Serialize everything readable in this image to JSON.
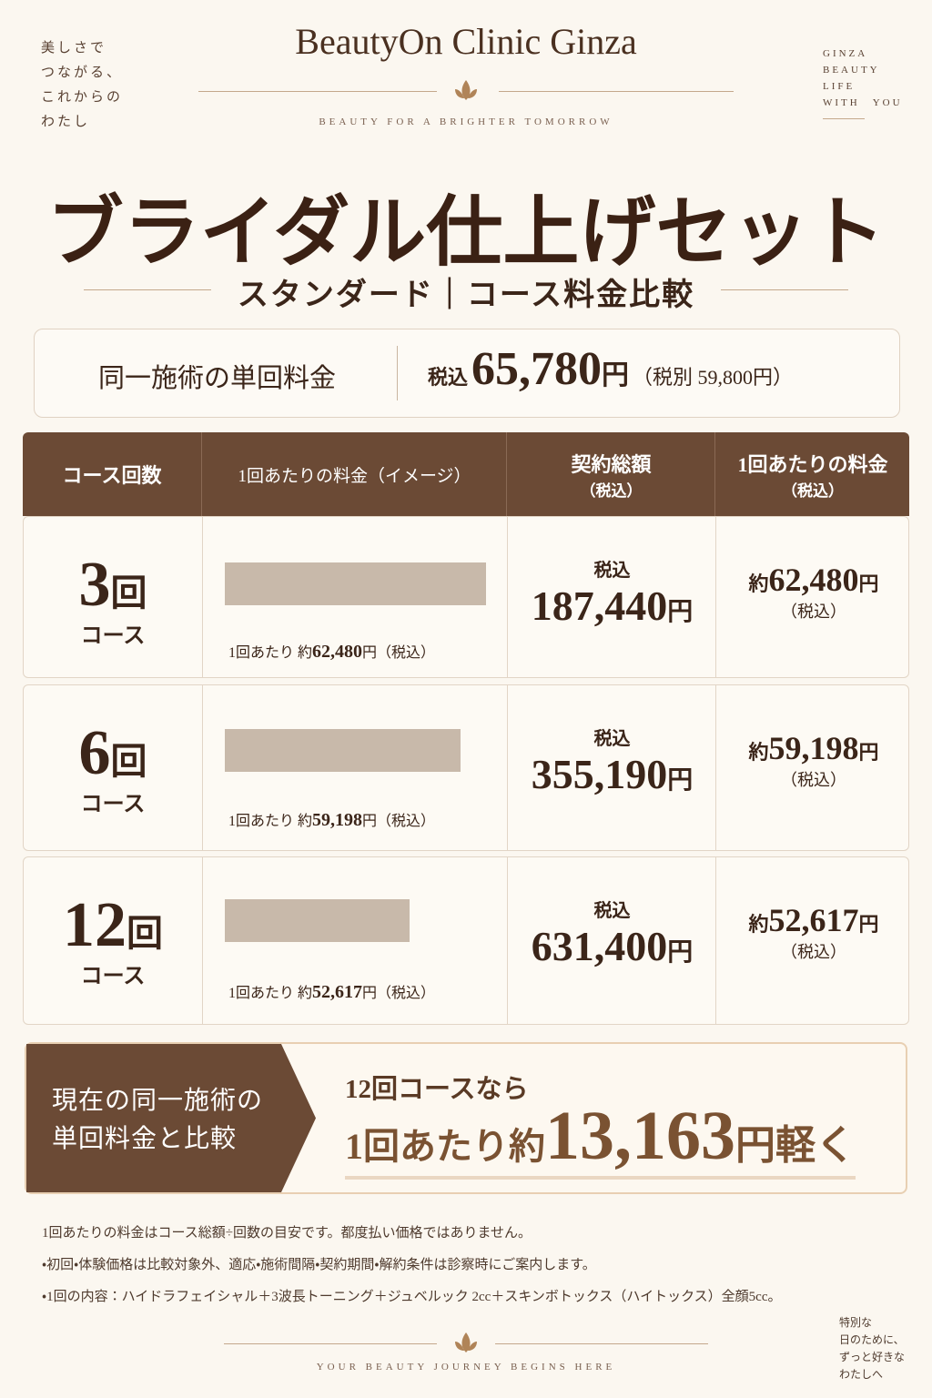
{
  "header": {
    "left_tagline": [
      "美しさで",
      "つながる、",
      "これからの",
      "わたし"
    ],
    "brand": "BeautyOn Clinic Ginza",
    "tagline": "BEAUTY FOR A BRIGHTER TOMORROW",
    "right_tagline": [
      "GINZA",
      "BEAUTY",
      "LIFE",
      "WITH　YOU"
    ]
  },
  "title": "ブライダル仕上げセット",
  "subtitle": "スタンダード｜コース料金比較",
  "single_price": {
    "label": "同一施術の単回料金",
    "tax_in": "税込",
    "amount": "65,780",
    "yen": "円",
    "note": "（税別 59,800円）"
  },
  "table": {
    "headers": [
      {
        "text": "コース回数"
      },
      {
        "text": "1回あたりの料金（イメージ）"
      },
      {
        "text": "契約総額",
        "note": "（税込）"
      },
      {
        "text": "1回あたりの料金",
        "note": "（税込）"
      }
    ],
    "labels": {
      "kai": "回",
      "course": "コース",
      "per_time": "1回あたり",
      "approx": "約",
      "yen": "円",
      "tax_paren": "（税込）",
      "tax_in": "税込"
    },
    "rows": [
      {
        "count": "3",
        "per_session": 62480,
        "per_session_label": "62,480",
        "total": "187,440"
      },
      {
        "count": "6",
        "per_session": 59198,
        "per_session_label": "59,198",
        "total": "355,190"
      },
      {
        "count": "12",
        "per_session": 52617,
        "per_session_label": "52,617",
        "total": "631,400"
      }
    ]
  },
  "savings": {
    "left": [
      "現在の同一施術の",
      "単回料金と比較"
    ],
    "line1": "12回コースなら",
    "prefix": "1回あたり約",
    "amount": "13,163",
    "suffix": "円軽く"
  },
  "notes": [
    "1回あたりの料金はコース総額÷回数の目安です。都度払い価格ではありません。",
    "・初回・体験価格は比較対象外、適応・施術間隔・契約期間・解約条件は診察時にご案内します。",
    "・1回の内容：ハイドラフェイシャル＋3波長トーニング＋ジュベルック 2cc＋スキンボトックス（ハイトックス）全顔5cc。"
  ],
  "footer": {
    "tagline": "YOUR BEAUTY JOURNEY BEGINS HERE",
    "right": [
      "特別な",
      "日のために、",
      "ずっと好きな",
      "わたしへ"
    ]
  }
}
